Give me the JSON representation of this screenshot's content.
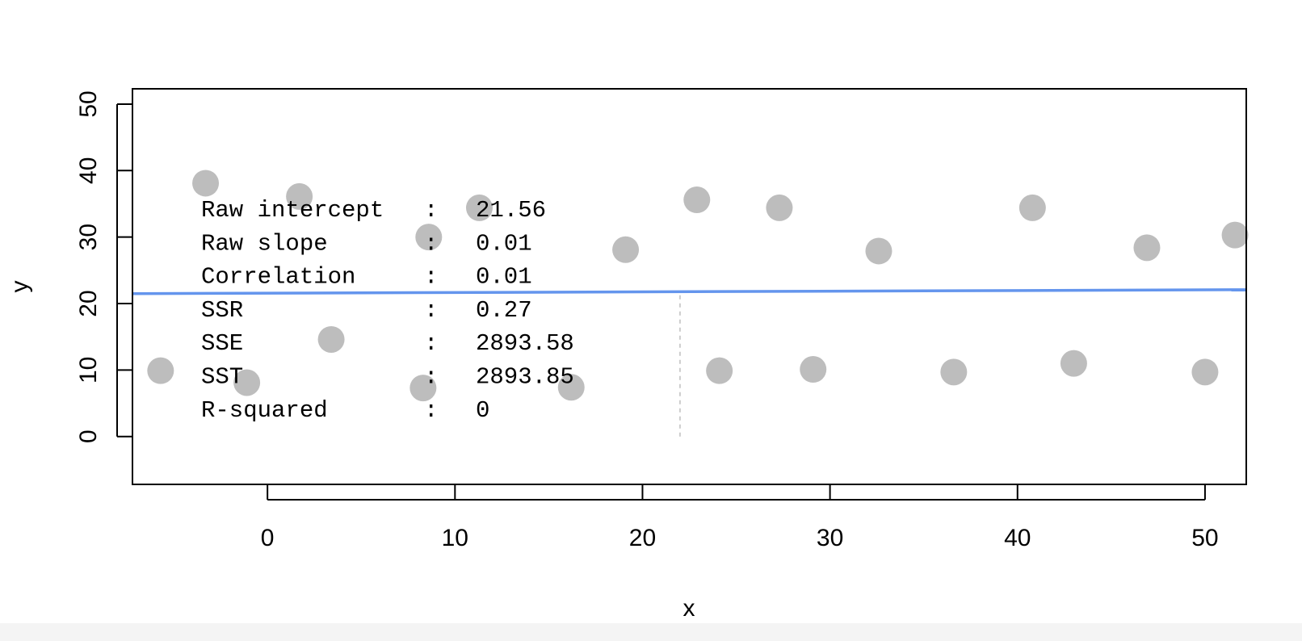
{
  "chart_data": {
    "type": "scatter",
    "xlabel": "x",
    "ylabel": "y",
    "xlim": [
      -7.2,
      52.2
    ],
    "ylim": [
      -7.2,
      52.3
    ],
    "xticks": [
      0,
      10,
      20,
      30,
      40,
      50
    ],
    "yticks": [
      0,
      10,
      20,
      30,
      40,
      50
    ],
    "grid": false,
    "legend": "none",
    "point_color": "#bdbdbd",
    "line_color": "#6495ed",
    "marker_line_color": "#cccccc",
    "points": [
      {
        "x": -5.7,
        "y": 9.9
      },
      {
        "x": -3.3,
        "y": 38.1
      },
      {
        "x": -1.1,
        "y": 8.1
      },
      {
        "x": 1.7,
        "y": 36.1
      },
      {
        "x": 3.4,
        "y": 14.6
      },
      {
        "x": 8.3,
        "y": 7.3
      },
      {
        "x": 8.6,
        "y": 30.0
      },
      {
        "x": 11.3,
        "y": 34.4
      },
      {
        "x": 16.2,
        "y": 7.4
      },
      {
        "x": 19.1,
        "y": 28.1
      },
      {
        "x": 22.9,
        "y": 35.6
      },
      {
        "x": 24.1,
        "y": 9.9
      },
      {
        "x": 27.3,
        "y": 34.4
      },
      {
        "x": 29.1,
        "y": 10.1
      },
      {
        "x": 32.6,
        "y": 27.9
      },
      {
        "x": 36.6,
        "y": 9.7
      },
      {
        "x": 40.8,
        "y": 34.4
      },
      {
        "x": 43.0,
        "y": 11.0
      },
      {
        "x": 46.9,
        "y": 28.4
      },
      {
        "x": 50.0,
        "y": 9.7
      },
      {
        "x": 51.6,
        "y": 30.3
      }
    ],
    "regression_line": {
      "intercept": 21.56,
      "slope": 0.01
    },
    "mean_marker": {
      "x": 22.0,
      "y_from": 0,
      "y_to": 21.6
    },
    "stats": [
      {
        "label": "Raw intercept",
        "value": "21.56"
      },
      {
        "label": "Raw slope",
        "value": "0.01"
      },
      {
        "label": "Correlation",
        "value": "0.01"
      },
      {
        "label": "SSR",
        "value": "0.27"
      },
      {
        "label": "SSE",
        "value": "2893.58"
      },
      {
        "label": "SST",
        "value": "2893.85"
      },
      {
        "label": "R-squared",
        "value": "0"
      }
    ]
  }
}
